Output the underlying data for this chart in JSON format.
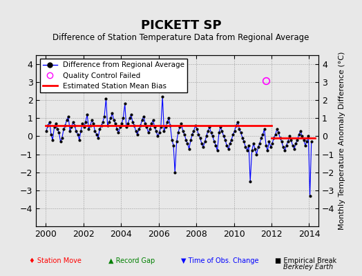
{
  "title": "PICKETT SP",
  "subtitle": "Difference of Station Temperature Data from Regional Average",
  "ylabel": "Monthly Temperature Anomaly Difference (°C)",
  "xlabel_credit": "Berkeley Earth",
  "xlim": [
    1999.5,
    2014.5
  ],
  "ylim": [
    -5,
    4.5
  ],
  "yticks": [
    -4,
    -3,
    -2,
    -1,
    0,
    1,
    2,
    3,
    4
  ],
  "xticks": [
    2000,
    2002,
    2004,
    2006,
    2008,
    2010,
    2012,
    2014
  ],
  "bias_line_y": 0.6,
  "bias_line_x_start": 2000,
  "bias_line_x_end": 2012,
  "bias_line2_y": -0.1,
  "bias_line2_x_start": 2012,
  "bias_line2_x_end": 2014.3,
  "bg_color": "#e8e8e8",
  "time_of_obs_change_x": 2012.0,
  "station_move_x": 2010.5,
  "qc_failed_x": 2011.7,
  "qc_failed_y": 3.1,
  "main_data": {
    "dates": [
      2000.04,
      2000.12,
      2000.21,
      2000.29,
      2000.37,
      2000.46,
      2000.54,
      2000.62,
      2000.71,
      2000.79,
      2000.87,
      2000.96,
      2001.04,
      2001.12,
      2001.21,
      2001.29,
      2001.37,
      2001.46,
      2001.54,
      2001.62,
      2001.71,
      2001.79,
      2001.87,
      2001.96,
      2002.04,
      2002.12,
      2002.21,
      2002.29,
      2002.37,
      2002.46,
      2002.54,
      2002.62,
      2002.71,
      2002.79,
      2002.87,
      2002.96,
      2003.04,
      2003.12,
      2003.21,
      2003.29,
      2003.37,
      2003.46,
      2003.54,
      2003.62,
      2003.71,
      2003.79,
      2003.87,
      2003.96,
      2004.04,
      2004.12,
      2004.21,
      2004.29,
      2004.37,
      2004.46,
      2004.54,
      2004.62,
      2004.71,
      2004.79,
      2004.87,
      2004.96,
      2005.04,
      2005.12,
      2005.21,
      2005.29,
      2005.37,
      2005.46,
      2005.54,
      2005.62,
      2005.71,
      2005.79,
      2005.87,
      2005.96,
      2006.04,
      2006.12,
      2006.21,
      2006.29,
      2006.37,
      2006.46,
      2006.54,
      2006.62,
      2006.71,
      2006.79,
      2006.87,
      2006.96,
      2007.04,
      2007.12,
      2007.21,
      2007.29,
      2007.37,
      2007.46,
      2007.54,
      2007.62,
      2007.71,
      2007.79,
      2007.87,
      2007.96,
      2008.04,
      2008.12,
      2008.21,
      2008.29,
      2008.37,
      2008.46,
      2008.54,
      2008.62,
      2008.71,
      2008.79,
      2008.87,
      2008.96,
      2009.04,
      2009.12,
      2009.21,
      2009.29,
      2009.37,
      2009.46,
      2009.54,
      2009.62,
      2009.71,
      2009.79,
      2009.87,
      2009.96,
      2010.04,
      2010.12,
      2010.21,
      2010.29,
      2010.37,
      2010.46,
      2010.54,
      2010.62,
      2010.71,
      2010.79,
      2010.87,
      2010.96,
      2011.04,
      2011.12,
      2011.21,
      2011.29,
      2011.37,
      2011.46,
      2011.54,
      2011.62,
      2011.71,
      2011.79,
      2011.87,
      2011.96,
      2012.04,
      2012.12,
      2012.21,
      2012.29,
      2012.37,
      2012.46,
      2012.54,
      2012.62,
      2012.71,
      2012.79,
      2012.87,
      2012.96,
      2013.04,
      2013.12,
      2013.21,
      2013.29,
      2013.37,
      2013.46,
      2013.54,
      2013.62,
      2013.71,
      2013.79,
      2013.87,
      2013.96,
      2014.04,
      2014.12
    ],
    "values": [
      0.3,
      0.6,
      0.8,
      0.1,
      -0.2,
      0.5,
      0.7,
      0.4,
      0.2,
      -0.3,
      -0.1,
      0.4,
      0.6,
      0.9,
      1.1,
      0.3,
      0.5,
      0.8,
      0.6,
      0.3,
      0.1,
      -0.2,
      0.3,
      0.7,
      0.5,
      0.8,
      1.2,
      0.4,
      0.6,
      0.9,
      0.7,
      0.3,
      0.1,
      -0.1,
      0.4,
      0.6,
      0.8,
      1.1,
      2.1,
      0.6,
      0.8,
      1.0,
      1.3,
      0.9,
      0.7,
      0.4,
      0.2,
      0.5,
      0.7,
      1.0,
      1.8,
      0.5,
      0.7,
      1.0,
      1.2,
      0.8,
      0.6,
      0.3,
      0.1,
      0.4,
      0.6,
      0.9,
      1.1,
      0.7,
      0.5,
      0.2,
      0.4,
      0.7,
      0.9,
      0.5,
      0.3,
      0.0,
      0.2,
      0.5,
      2.2,
      0.3,
      0.5,
      0.8,
      1.0,
      0.6,
      -0.2,
      -0.5,
      -2.0,
      -0.3,
      0.2,
      0.5,
      0.7,
      0.3,
      0.1,
      -0.2,
      -0.4,
      -0.7,
      -0.2,
      0.1,
      0.3,
      0.6,
      0.4,
      0.1,
      -0.1,
      -0.4,
      -0.6,
      -0.3,
      0.0,
      0.3,
      0.5,
      0.2,
      0.0,
      -0.3,
      -0.5,
      -0.8,
      0.2,
      0.5,
      0.3,
      0.0,
      -0.2,
      -0.5,
      -0.7,
      -0.4,
      -0.2,
      0.1,
      0.3,
      0.6,
      0.8,
      0.4,
      0.2,
      -0.1,
      -0.3,
      -0.6,
      -0.8,
      -0.5,
      -2.5,
      -0.8,
      -0.4,
      -0.7,
      -1.0,
      -0.6,
      -0.4,
      -0.1,
      0.1,
      0.4,
      -0.5,
      -0.8,
      -0.3,
      -0.6,
      -0.4,
      -0.1,
      0.1,
      0.4,
      0.2,
      -0.1,
      -0.3,
      -0.6,
      -0.8,
      -0.5,
      -0.3,
      0.0,
      -0.2,
      -0.5,
      -0.7,
      -0.4,
      -0.2,
      0.1,
      0.3,
      0.0,
      -0.2,
      -0.5,
      -0.3,
      0.0,
      -3.3,
      -0.3
    ]
  }
}
